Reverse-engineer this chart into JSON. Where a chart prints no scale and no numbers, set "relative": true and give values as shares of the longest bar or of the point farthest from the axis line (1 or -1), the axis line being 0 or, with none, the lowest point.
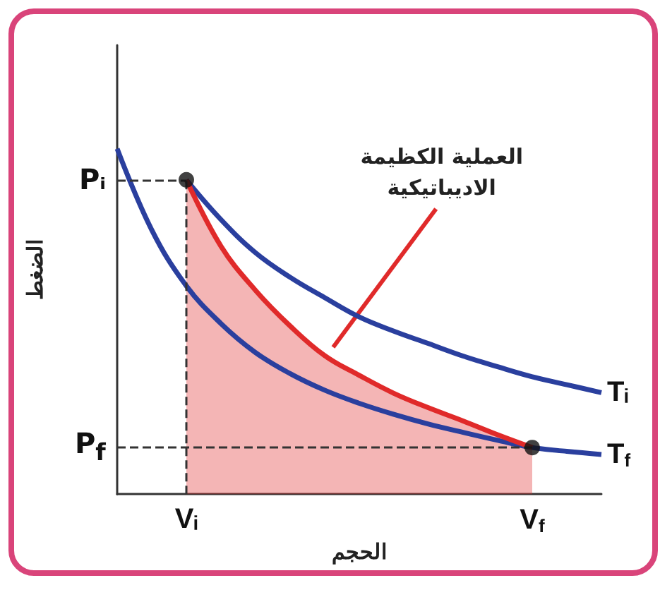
{
  "chart_data": {
    "type": "line",
    "xlabel": "الحجم",
    "ylabel": "الضغط",
    "relative": true,
    "categories": [
      null,
      null,
      "Vᵢ",
      null,
      null,
      null,
      null,
      null,
      null,
      null,
      null,
      null,
      "V$_{f}$",
      null,
      null
    ],
    "grid": false,
    "legend": false,
    "series": [
      {
        "name": "Tᵢ",
        "color": "#2a3f9e",
        "values": [
          null,
          null,
          0.91,
          0.795,
          0.699,
          0.628,
          0.569,
          0.513,
          0.472,
          0.436,
          0.4,
          0.369,
          0.34,
          0.317,
          0.294
        ]
      },
      {
        "name": "T$_{f}$",
        "color": "#2a3f9e",
        "values": [
          1,
          0.765,
          0.603,
          0.494,
          0.41,
          0.349,
          0.301,
          0.263,
          0.231,
          0.203,
          0.179,
          0.156,
          0.135,
          0.124,
          0.115
        ]
      },
      {
        "type": "area",
        "color": "#e02a2a",
        "values": [
          null,
          null,
          0.91,
          0.718,
          0.59,
          0.487,
          0.401,
          0.344,
          0.292,
          0.25,
          0.212,
          0.172,
          0.135,
          null,
          null
        ]
      },
      {
        "type": "scatter",
        "color": "#111111",
        "marker": "circle",
        "x": [
          "Vᵢ",
          "V$_{f}$"
        ],
        "values": [
          0.91,
          0.135
        ]
      }
    ],
    "ref_lines": [
      {
        "axis": "y",
        "value": 0.91,
        "label": "Pᵢ",
        "line_style": "dashed"
      },
      {
        "axis": "x",
        "value": "Vᵢ",
        "line_style": "dashed"
      },
      {
        "axis": "y",
        "value": 0.135,
        "label": "P$_{f}$",
        "line_style": "dashed"
      }
    ],
    "annotations": [
      "العملية الكظيمة\nالاديباتيكية"
    ]
  }
}
